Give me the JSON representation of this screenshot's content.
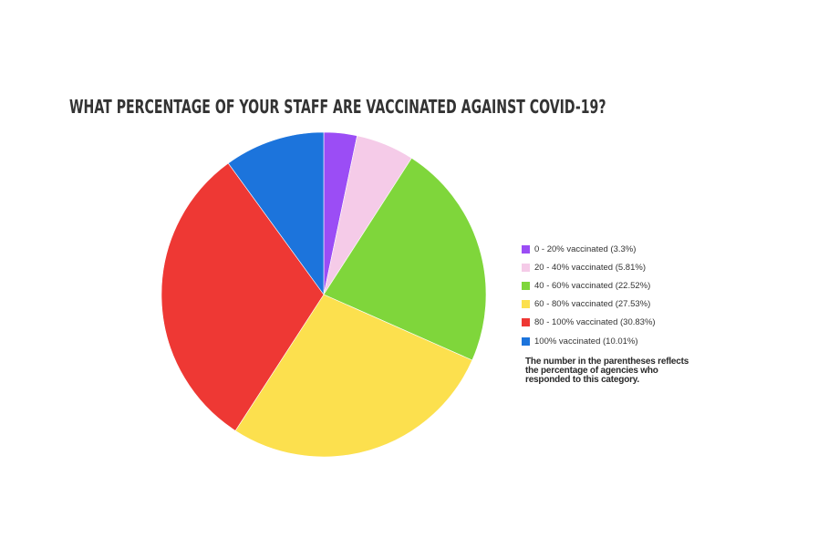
{
  "chart": {
    "title": "WHAT PERCENTAGE OF YOUR STAFF ARE VACCINATED AGAINST COVID-19?",
    "note": "The number in the parentheses reflects the percentage of agencies who responded to this category."
  },
  "legend": [
    {
      "label": "0 - 20% vaccinated (3.3%)",
      "color": "#9B4DF5"
    },
    {
      "label": "20 - 40% vaccinated (5.81%)",
      "color": "#F5CBE8"
    },
    {
      "label": "40 - 60% vaccinated (22.52%)",
      "color": "#7FD63B"
    },
    {
      "label": "60 - 80% vaccinated (27.53%)",
      "color": "#FCE04E"
    },
    {
      "label": "80 - 100% vaccinated (30.83%)",
      "color": "#EE3834"
    },
    {
      "label": "100% vaccinated (10.01%)",
      "color": "#1C74DC"
    }
  ],
  "chart_data": {
    "type": "pie",
    "title": "WHAT PERCENTAGE OF YOUR STAFF ARE VACCINATED AGAINST COVID-19?",
    "categories": [
      "0 - 20% vaccinated",
      "20 - 40% vaccinated",
      "40 - 60% vaccinated",
      "60 - 80% vaccinated",
      "80 - 100% vaccinated",
      "100% vaccinated"
    ],
    "values": [
      3.3,
      5.81,
      22.52,
      27.53,
      30.83,
      10.01
    ],
    "colors": [
      "#9B4DF5",
      "#F5CBE8",
      "#7FD63B",
      "#FCE04E",
      "#EE3834",
      "#1C74DC"
    ],
    "start_angle": "12 o'clock",
    "direction": "clockwise",
    "legend_position": "right",
    "annotation": "The number in the parentheses reflects the percentage of agencies who responded to this category."
  }
}
